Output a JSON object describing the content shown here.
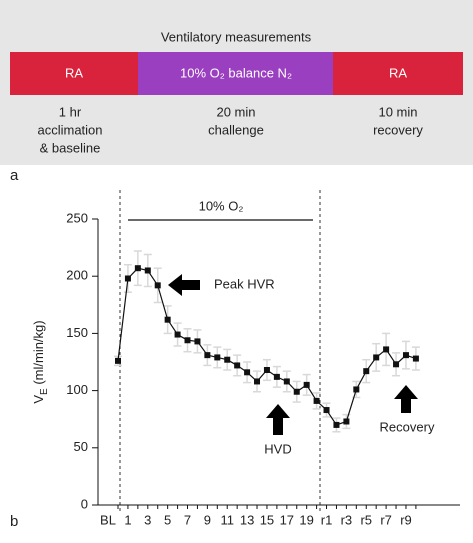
{
  "diagram": {
    "title": "Ventilatory measurements",
    "phases": [
      {
        "label": "RA",
        "description": [
          "1 hr",
          "acclimation",
          "& baseline"
        ]
      },
      {
        "label": "10% O₂ balance N₂",
        "description": [
          "20 min",
          "challenge"
        ]
      },
      {
        "label": "RA",
        "description": [
          "10 min",
          "recovery"
        ]
      }
    ],
    "panel_label": "a"
  },
  "chart_data": {
    "type": "line",
    "panel_label": "b",
    "ylabel": [
      "V",
      "E",
      " (ml/min/kg)"
    ],
    "phase_label": "10% O₂",
    "annotations": [
      "Peak HVR",
      "HVD",
      "Recovery"
    ],
    "categories": [
      "BL",
      "1",
      null,
      "3",
      null,
      "5",
      null,
      "7",
      null,
      "9",
      null,
      "11",
      null,
      "13",
      null,
      "15",
      null,
      "17",
      null,
      "19",
      null,
      "r1",
      null,
      "r3",
      null,
      "r5",
      null,
      "r7",
      null,
      "r9",
      null
    ],
    "values": [
      126,
      198,
      207,
      205,
      192,
      162,
      149,
      144,
      143,
      131,
      129,
      127,
      122,
      116,
      108,
      118,
      112,
      108,
      99,
      105,
      91,
      83,
      70,
      73,
      101,
      117,
      129,
      136,
      123,
      131,
      128
    ],
    "errors": [
      4,
      12,
      15,
      14,
      15,
      12,
      10,
      10,
      10,
      9,
      9,
      9,
      9,
      9,
      9,
      9,
      9,
      9,
      9,
      9,
      7,
      6,
      6,
      6,
      7,
      10,
      12,
      14,
      10,
      12,
      10
    ],
    "color": "#111111",
    "error_color": "#d8d8d8",
    "ylim": [
      0,
      250
    ],
    "yticks": [
      0,
      50,
      100,
      150,
      200,
      250
    ]
  }
}
